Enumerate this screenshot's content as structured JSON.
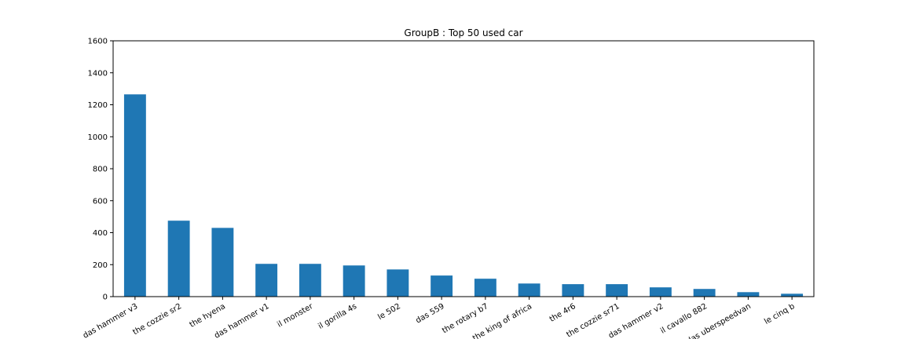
{
  "chart_data": {
    "type": "bar",
    "title": "GroupB : Top 50 used car",
    "xlabel": "",
    "ylabel": "",
    "categories": [
      "das hammer v3",
      "the cozzie sr2",
      "the hyena",
      "das hammer v1",
      "il monster",
      "il gorilla 4s",
      "le 502",
      "das 559",
      "the rotary b7",
      "the king of africa",
      "the 4r6",
      "the cozzie sr71",
      "das hammer v2",
      "il cavallo 882",
      "das uberspeedvan",
      "le cinq b"
    ],
    "values": [
      1265,
      475,
      430,
      205,
      205,
      195,
      170,
      132,
      112,
      82,
      78,
      78,
      58,
      48,
      28,
      18
    ],
    "ylim": [
      0,
      1600
    ],
    "yticks": [
      0,
      200,
      400,
      600,
      800,
      1000,
      1200,
      1400,
      1600
    ],
    "ytick_labels": [
      "0",
      "200",
      "400",
      "600",
      "800",
      "1000",
      "1200",
      "1400",
      "1600"
    ],
    "bar_color": "#1f77b4",
    "grid": false,
    "legend": "none"
  }
}
